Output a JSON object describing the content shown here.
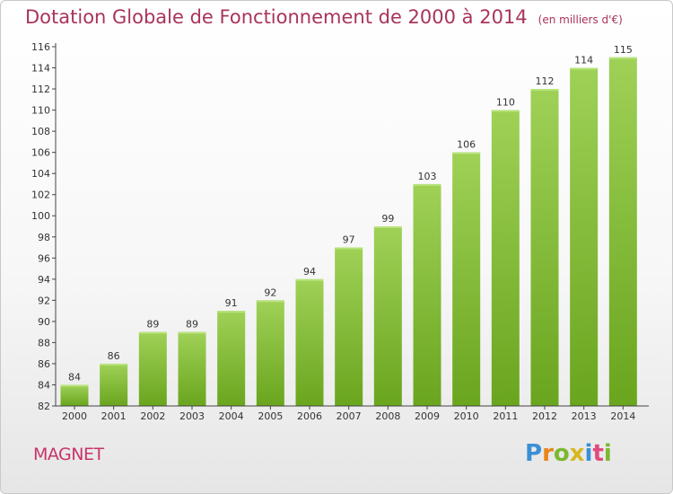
{
  "chart_data": {
    "type": "bar",
    "title": "Dotation Globale de Fonctionnement de 2000 à 2014",
    "unit_note": "(en milliers d'€)",
    "categories": [
      "2000",
      "2001",
      "2002",
      "2003",
      "2004",
      "2005",
      "2006",
      "2007",
      "2008",
      "2009",
      "2010",
      "2011",
      "2012",
      "2013",
      "2014"
    ],
    "values": [
      84,
      86,
      89,
      89,
      91,
      92,
      94,
      97,
      99,
      103,
      106,
      110,
      112,
      114,
      115
    ],
    "ylim": [
      82,
      116
    ],
    "yticks": [
      82,
      84,
      86,
      88,
      90,
      92,
      94,
      96,
      98,
      100,
      102,
      104,
      106,
      108,
      110,
      112,
      114,
      116
    ],
    "grid": false,
    "bar_color_top": "#9fd157",
    "bar_color_bottom": "#6aa51e"
  },
  "commune": "MAGNET",
  "logo": {
    "letters": [
      "P",
      "r",
      "o",
      "x",
      "i",
      "t",
      "i"
    ]
  }
}
